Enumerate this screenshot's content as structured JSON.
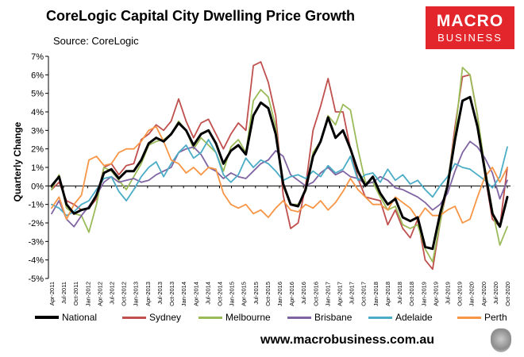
{
  "header": {
    "title": "CoreLogic Capital City Dwelling Price Growth",
    "source": "Source: CoreLogic"
  },
  "logo": {
    "line1": "MACRO",
    "line2": "BUSINESS"
  },
  "footer": {
    "url": "www.macrobusiness.com.au"
  },
  "colors": {
    "logo_red": "#e3262b",
    "national": "#000000",
    "sydney": "#c0504d",
    "melbourne": "#9bbb59",
    "brisbane": "#8064a2",
    "adelaide": "#4bacc6",
    "perth": "#f79646"
  },
  "chart_data": {
    "type": "line",
    "title": "CoreLogic Capital City Dwelling Price Growth",
    "xlabel": "",
    "ylabel": "Quarterly Change",
    "ylim": [
      -5,
      7
    ],
    "yticks": [
      -5,
      -4,
      -3,
      -2,
      -1,
      0,
      1,
      2,
      3,
      4,
      5,
      6,
      7
    ],
    "ytick_labels": [
      "-5%",
      "-4%",
      "-3%",
      "-2%",
      "-1%",
      "0%",
      "1%",
      "2%",
      "3%",
      "4%",
      "5%",
      "6%",
      "7%"
    ],
    "x_tick_labels": [
      "Apr-2011",
      "Jul-2011",
      "Oct-2011",
      "Jan-2012",
      "Apr-2012",
      "Jul-2012",
      "Oct-2012",
      "Jan-2013",
      "Apr-2013",
      "Jul-2013",
      "Oct-2013",
      "Jan-2014",
      "Apr-2014",
      "Jul-2014",
      "Oct-2014",
      "Jan-2015",
      "Apr-2015",
      "Jul-2015",
      "Oct-2015",
      "Jan-2016",
      "Apr-2016",
      "Jul-2016",
      "Oct-2016",
      "Jan-2017",
      "Apr-2017",
      "Jul-2017",
      "Oct-2017",
      "Jan-2018",
      "Apr-2018",
      "Jul-2018",
      "Oct-2018",
      "Jan-2019",
      "Apr-2019",
      "Jul-2019",
      "Oct-2019",
      "Jan-2020",
      "Apr-2020",
      "Jul-2020",
      "Oct-2020"
    ],
    "grid": false,
    "legend_position": "bottom",
    "series": [
      {
        "name": "National",
        "color": "#000000",
        "values": [
          0.0,
          0.5,
          -1.0,
          -1.5,
          -1.3,
          -1.2,
          -0.5,
          0.7,
          0.9,
          0.4,
          0.8,
          0.8,
          1.4,
          2.3,
          2.6,
          2.4,
          2.8,
          3.4,
          3.0,
          2.2,
          2.8,
          3.0,
          2.3,
          1.2,
          1.9,
          2.2,
          1.7,
          3.8,
          4.5,
          4.2,
          2.8,
          0.1,
          -1.0,
          -1.1,
          -0.2,
          1.6,
          2.4,
          3.7,
          2.6,
          3.0,
          2.0,
          0.8,
          0.0,
          0.5,
          -0.4,
          -1.0,
          -0.7,
          -1.7,
          -1.9,
          -1.7,
          -3.3,
          -3.4,
          -1.5,
          0.0,
          2.5,
          4.6,
          4.8,
          3.2,
          0.8,
          -1.5,
          -2.2,
          -0.6
        ]
      },
      {
        "name": "Sydney",
        "color": "#c0504d",
        "values": [
          -0.2,
          0.2,
          -0.8,
          -1.0,
          -1.3,
          -1.2,
          -0.7,
          1.0,
          1.2,
          0.6,
          1.1,
          1.2,
          2.5,
          2.8,
          3.3,
          3.0,
          3.5,
          4.7,
          3.5,
          2.6,
          3.4,
          3.6,
          2.8,
          2.0,
          2.8,
          3.4,
          3.0,
          6.5,
          6.7,
          5.6,
          3.8,
          -0.5,
          -2.3,
          -2.0,
          0.0,
          3.0,
          4.3,
          5.8,
          4.0,
          4.0,
          2.0,
          0.4,
          -0.6,
          -0.7,
          -0.8,
          -2.1,
          -1.3,
          -2.3,
          -2.8,
          -1.8,
          -4.0,
          -4.5,
          -2.0,
          0.0,
          3.2,
          5.9,
          6.0,
          3.8,
          0.6,
          -1.8,
          -2.2,
          1.0
        ]
      },
      {
        "name": "Melbourne",
        "color": "#9bbb59",
        "values": [
          -0.2,
          0.6,
          -1.2,
          -1.5,
          -1.6,
          -2.5,
          -1.0,
          1.0,
          0.8,
          0.3,
          -0.2,
          0.5,
          1.2,
          2.2,
          2.4,
          2.5,
          2.8,
          3.5,
          3.0,
          2.0,
          2.6,
          2.2,
          1.8,
          0.8,
          2.1,
          2.5,
          1.8,
          4.6,
          5.2,
          4.8,
          3.2,
          0.0,
          -1.0,
          -1.0,
          -0.3,
          1.8,
          2.4,
          3.8,
          3.3,
          4.4,
          4.1,
          2.0,
          0.2,
          0.2,
          -0.6,
          -1.3,
          -1.1,
          -2.1,
          -2.3,
          -2.1,
          -3.4,
          -4.1,
          -2.0,
          0.2,
          2.8,
          6.4,
          6.0,
          3.8,
          1.0,
          -1.3,
          -3.2,
          -2.2
        ]
      },
      {
        "name": "Brisbane",
        "color": "#8064a2",
        "values": [
          -1.5,
          -0.8,
          -1.8,
          -2.2,
          -1.6,
          -1.1,
          -0.5,
          0.2,
          0.5,
          0.2,
          0.3,
          0.4,
          0.2,
          0.3,
          0.6,
          0.8,
          1.0,
          1.8,
          2.0,
          2.1,
          1.7,
          1.0,
          0.8,
          0.4,
          0.7,
          0.5,
          0.4,
          0.8,
          1.2,
          1.4,
          1.9,
          1.6,
          0.6,
          0.3,
          0.0,
          0.2,
          0.7,
          1.0,
          0.6,
          0.8,
          0.5,
          0.4,
          0.1,
          0.2,
          0.5,
          0.3,
          -0.1,
          -0.2,
          -0.4,
          -0.6,
          -0.9,
          -1.3,
          -1.0,
          -0.4,
          0.8,
          1.8,
          2.4,
          2.1,
          1.5,
          0.7,
          -0.7,
          0.3
        ]
      },
      {
        "name": "Adelaide",
        "color": "#4bacc6",
        "values": [
          -1.0,
          -1.2,
          -1.6,
          -1.4,
          -1.0,
          -0.8,
          -0.2,
          0.4,
          0.5,
          -0.3,
          -0.8,
          -0.2,
          0.5,
          1.0,
          1.3,
          0.5,
          1.2,
          1.8,
          2.2,
          1.5,
          1.8,
          2.5,
          1.8,
          0.6,
          0.2,
          0.6,
          1.5,
          1.0,
          1.4,
          1.2,
          0.8,
          0.3,
          0.5,
          0.6,
          0.4,
          0.8,
          0.5,
          1.1,
          0.7,
          0.9,
          1.6,
          0.3,
          0.6,
          0.7,
          0.2,
          0.9,
          0.3,
          0.6,
          0.1,
          0.3,
          -0.2,
          -0.6,
          0.0,
          0.5,
          1.2,
          1.0,
          0.9,
          0.6,
          0.3,
          -0.1,
          0.5,
          2.1
        ]
      },
      {
        "name": "Perth",
        "color": "#f79646",
        "values": [
          -1.2,
          -0.6,
          -1.8,
          -1.0,
          -0.5,
          1.4,
          1.6,
          1.1,
          1.2,
          1.8,
          2.0,
          2.0,
          2.4,
          3.0,
          3.2,
          2.4,
          1.4,
          1.2,
          0.7,
          1.0,
          0.6,
          1.0,
          0.9,
          -0.4,
          -1.0,
          -1.2,
          -1.0,
          -1.5,
          -1.3,
          -1.7,
          -1.2,
          -0.8,
          -1.3,
          -1.4,
          -1.0,
          -1.2,
          -0.8,
          -1.3,
          -0.9,
          -0.3,
          0.4,
          -0.2,
          -0.6,
          -1.0,
          -1.0,
          -1.3,
          -0.6,
          -0.9,
          -1.2,
          -1.8,
          -1.2,
          -1.6,
          -1.6,
          -1.3,
          -1.1,
          -2.0,
          -1.8,
          -0.6,
          0.5,
          1.0,
          0.2,
          1.0
        ]
      }
    ]
  }
}
